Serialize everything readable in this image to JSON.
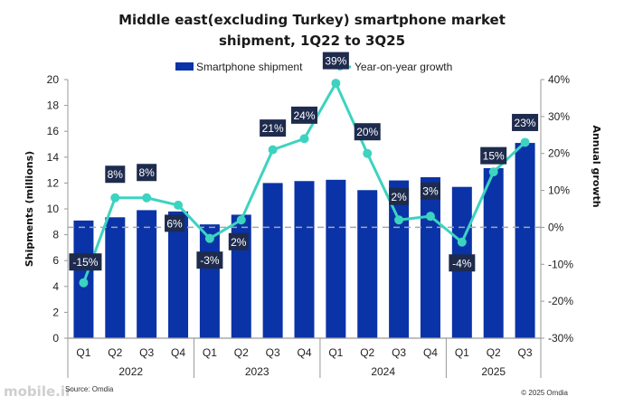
{
  "chart_data": {
    "type": "bar",
    "title_lines": [
      "Middle east(excluding Turkey) smartphone market",
      "shipment, 1Q22 to 3Q25"
    ],
    "legend": {
      "placement": "top-center",
      "entries": [
        "Smartphone shipment",
        "Year-on-year growth"
      ]
    },
    "categories": [
      "Q1",
      "Q2",
      "Q3",
      "Q4",
      "Q1",
      "Q2",
      "Q3",
      "Q4",
      "Q1",
      "Q2",
      "Q3",
      "Q4",
      "Q1",
      "Q2",
      "Q3"
    ],
    "groups": [
      {
        "label": "2022",
        "count": 4
      },
      {
        "label": "2023",
        "count": 4
      },
      {
        "label": "2024",
        "count": 4
      },
      {
        "label": "2025",
        "count": 3
      }
    ],
    "series": [
      {
        "name": "Smartphone shipment",
        "type": "bar",
        "axis": "left",
        "color": "#0a33a8",
        "values": [
          9.1,
          9.35,
          9.9,
          9.8,
          8.8,
          9.55,
          12.0,
          12.15,
          12.25,
          11.45,
          12.2,
          12.45,
          11.7,
          13.15,
          15.1
        ]
      },
      {
        "name": "Year-on-year growth",
        "type": "line",
        "axis": "right",
        "color": "#3cd3c0",
        "values": [
          -15,
          8,
          8,
          6,
          -3,
          2,
          21,
          24,
          39,
          20,
          2,
          3,
          -4,
          15,
          23
        ],
        "data_labels": [
          "-15%",
          "8%",
          "8%",
          "6%",
          "-3%",
          "2%",
          "21%",
          "24%",
          "39%",
          "20%",
          "2%",
          "3%",
          "-4%",
          "15%",
          "23%"
        ],
        "label_color": "#1e2b4d"
      }
    ],
    "ylabel": "Shipments (millions)",
    "ylim": [
      0,
      20
    ],
    "yticks": [
      0,
      2,
      4,
      6,
      8,
      10,
      12,
      14,
      16,
      18,
      20
    ],
    "y2label": "Annual growth",
    "y2lim": [
      -30,
      40
    ],
    "y2ticks": [
      "-30%",
      "-20%",
      "-10%",
      "0%",
      "10%",
      "20%",
      "30%",
      "40%"
    ],
    "y2tick_values": [
      -30,
      -20,
      -10,
      0,
      10,
      20,
      30,
      40
    ],
    "zero_growth_reference_line": "dashed",
    "grid": false
  },
  "footer": {
    "source": "Source: Omdia",
    "copyright": "© 2025 Omdia",
    "watermark": "mobile.ir"
  }
}
